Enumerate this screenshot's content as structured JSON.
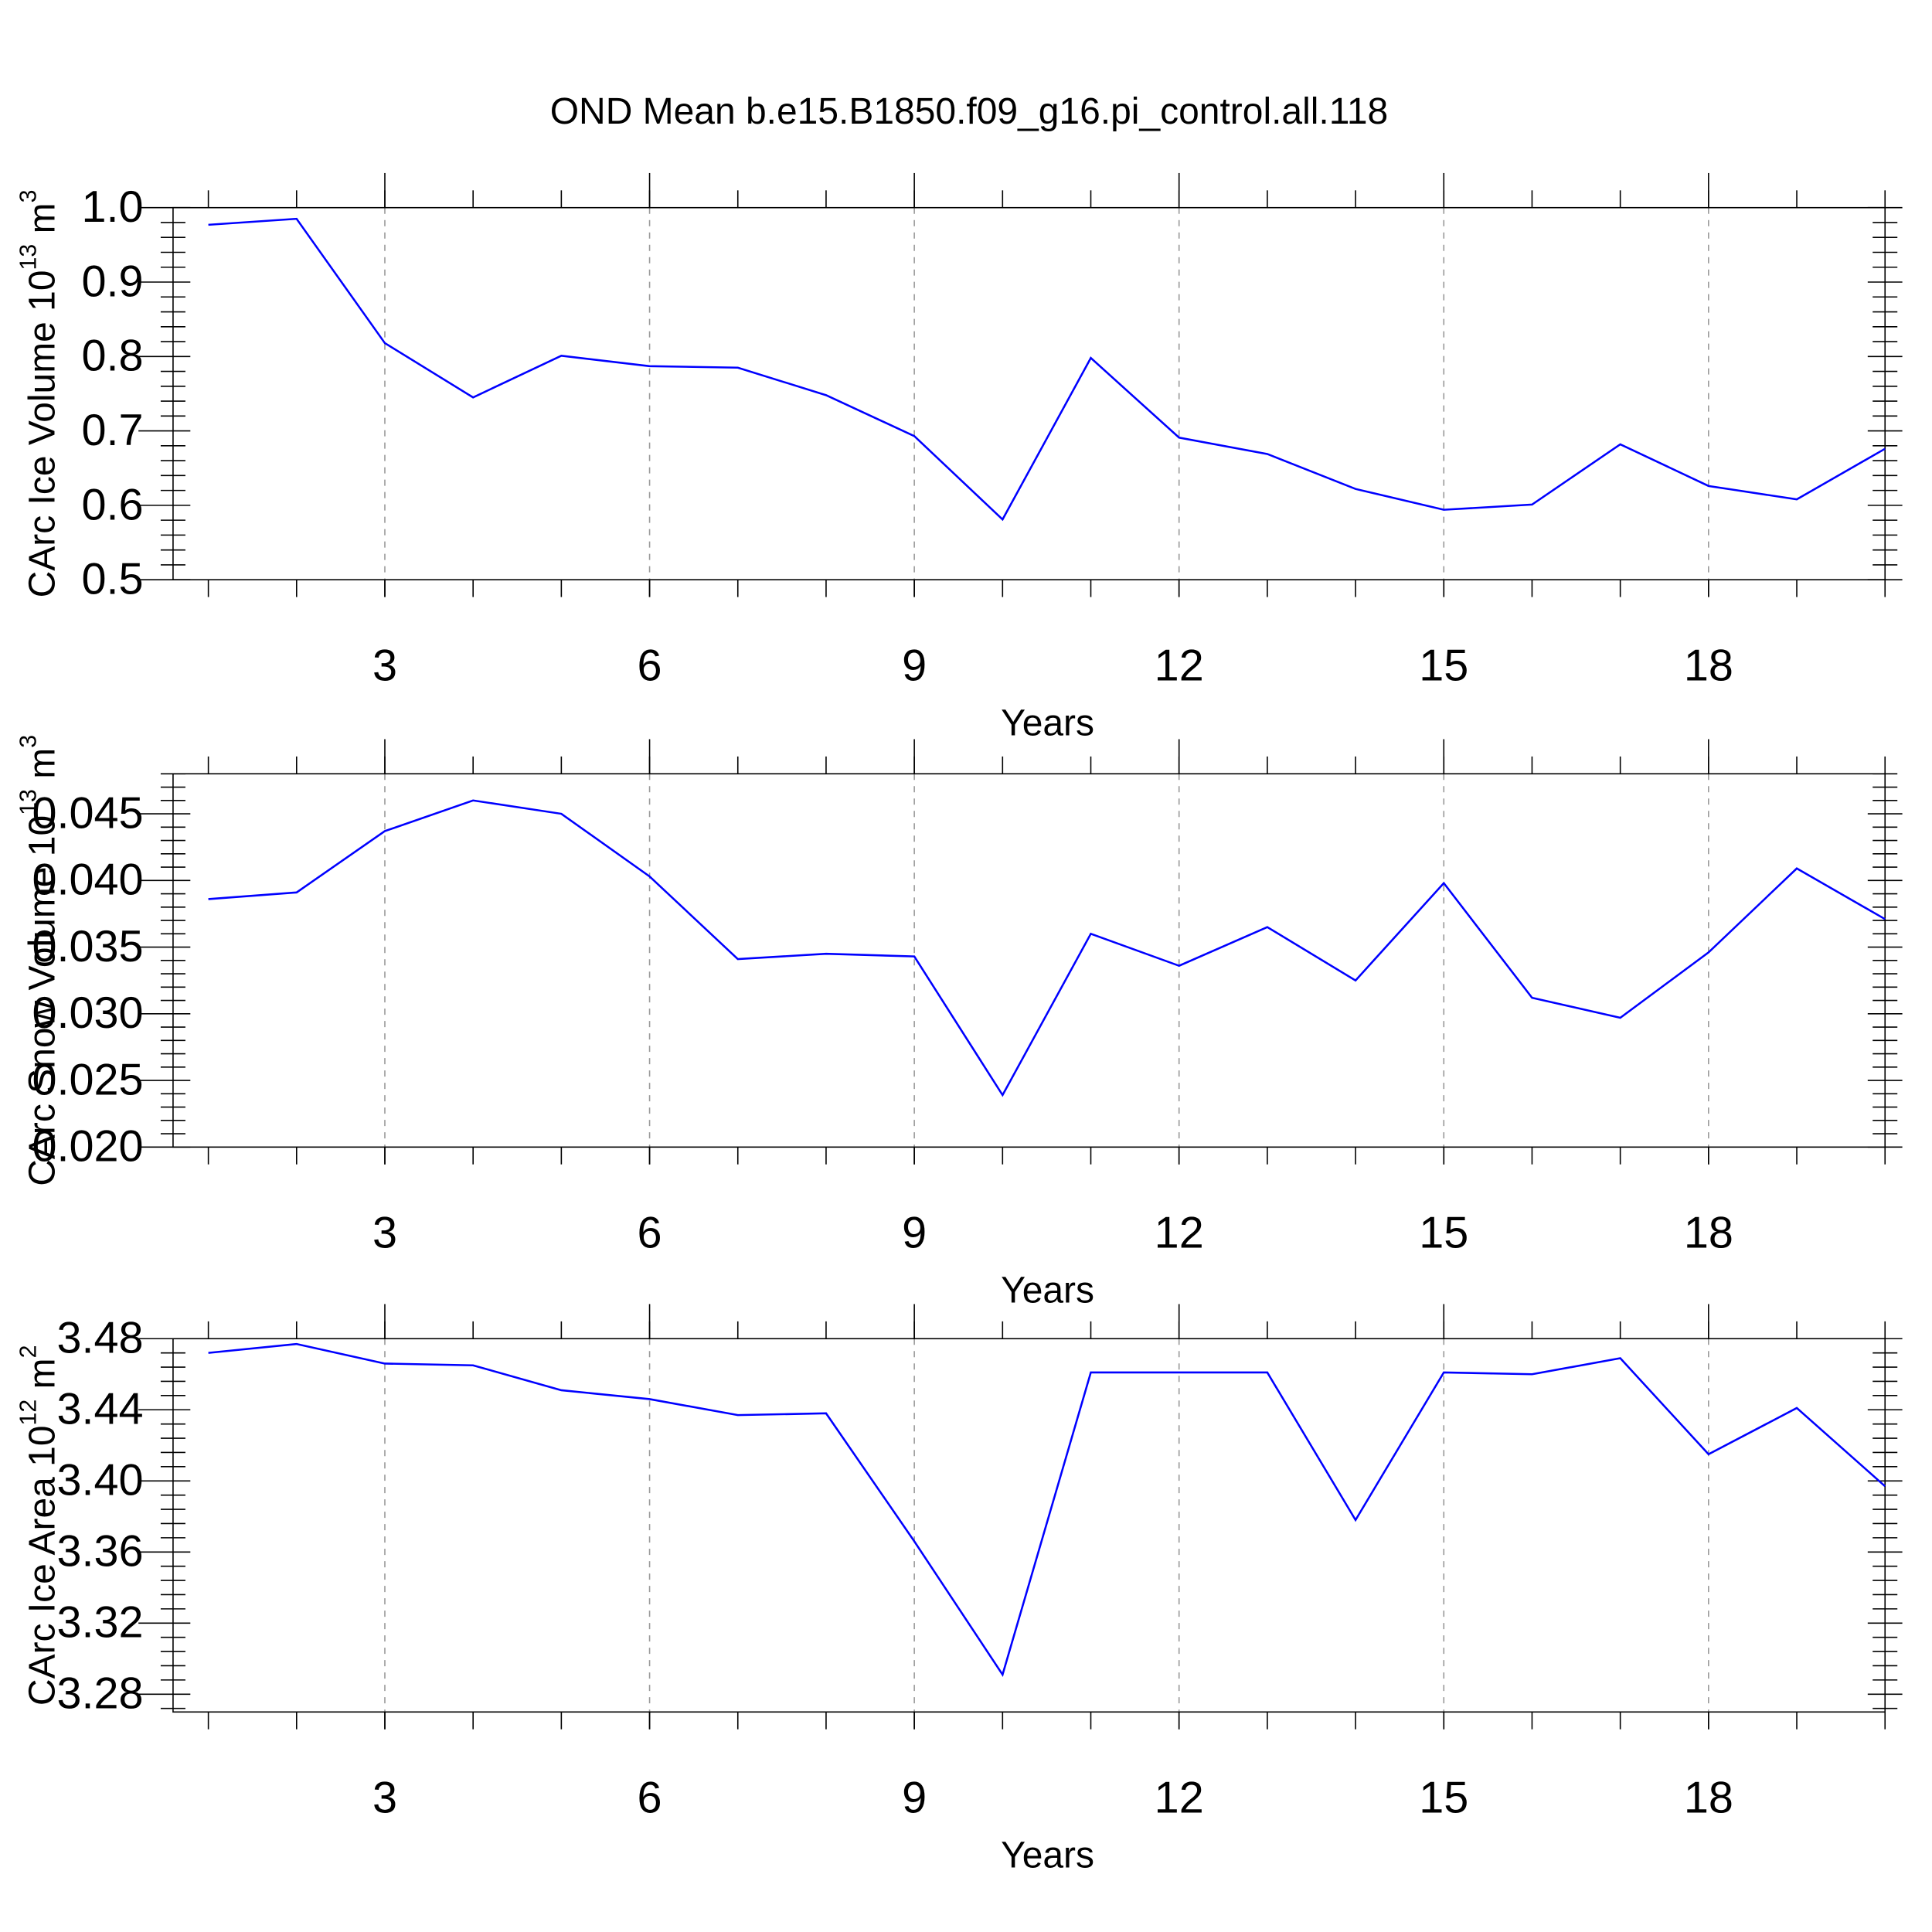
{
  "chart_data": [
    {
      "type": "line",
      "title": "OND Mean b.e15.B1850.f09_g16.pi_control.all.118",
      "xlabel": "Years",
      "ylabel": {
        "text": "CArc Ice Volume 10",
        "exp": "13",
        "unit": " m",
        "unit_exp": "3"
      },
      "x": [
        1,
        2,
        3,
        4,
        5,
        6,
        7,
        8,
        9,
        10,
        11,
        12,
        13,
        14,
        15,
        16,
        17,
        18,
        19,
        20
      ],
      "series": [
        {
          "color": "#0000ff",
          "values": [
            0.977,
            0.985,
            0.818,
            0.745,
            0.801,
            0.787,
            0.785,
            0.748,
            0.693,
            0.581,
            0.798,
            0.691,
            0.669,
            0.622,
            0.594,
            0.601,
            0.682,
            0.626,
            0.608,
            0.676
          ]
        }
      ],
      "xlim": [
        0.6,
        20
      ],
      "xticks": [
        3,
        6,
        9,
        12,
        15,
        18
      ],
      "ylim": [
        0.5,
        1.0
      ],
      "yticks": [
        {
          "value": 0.5,
          "label": "0.5"
        },
        0.6,
        0.7,
        0.8,
        0.9,
        {
          "value": 1.0,
          "label": "1.0"
        }
      ],
      "grid": "x-dashed"
    },
    {
      "type": "line",
      "xlabel": "Years",
      "ylabel": {
        "text": "CArc Snow Volume 10",
        "exp": "13",
        "unit": " m",
        "unit_exp": "3"
      },
      "x": [
        1,
        2,
        3,
        4,
        5,
        6,
        7,
        8,
        9,
        10,
        11,
        12,
        13,
        14,
        15,
        16,
        17,
        18,
        19,
        20
      ],
      "series": [
        {
          "color": "#0000ff",
          "values": [
            0.0386,
            0.0391,
            0.0437,
            0.046,
            0.045,
            0.0403,
            0.0341,
            0.0345,
            0.0343,
            0.0239,
            0.036,
            0.0336,
            0.0365,
            0.0325,
            0.0398,
            0.0312,
            0.0297,
            0.0346,
            0.0409,
            0.0371
          ]
        }
      ],
      "xlim": [
        0.6,
        20
      ],
      "xticks": [
        3,
        6,
        9,
        12,
        15,
        18
      ],
      "ylim": [
        0.02,
        0.048
      ],
      "yticks": [
        {
          "value": 0.02,
          "label": "0.020"
        },
        0.025,
        {
          "value": 0.03,
          "label": "0.030"
        },
        0.035,
        {
          "value": 0.04,
          "label": "0.040"
        },
        0.045
      ],
      "grid": "x-dashed"
    },
    {
      "type": "line",
      "xlabel": "Years",
      "ylabel": {
        "text": "CArc Ice Area 10",
        "exp": "12",
        "unit": " m",
        "unit_exp": "2"
      },
      "x": [
        1,
        2,
        3,
        4,
        5,
        6,
        7,
        8,
        9,
        10,
        11,
        12,
        13,
        14,
        15,
        16,
        17,
        18,
        19,
        20
      ],
      "series": [
        {
          "color": "#0000ff",
          "values": [
            3.472,
            3.477,
            3.466,
            3.465,
            3.451,
            3.446,
            3.437,
            3.438,
            3.366,
            3.291,
            3.461,
            3.461,
            3.461,
            3.378,
            3.461,
            3.46,
            3.469,
            3.415,
            3.441,
            3.397
          ]
        }
      ],
      "xlim": [
        0.6,
        20
      ],
      "xticks": [
        3,
        6,
        9,
        12,
        15,
        18
      ],
      "ylim": [
        3.27,
        3.48
      ],
      "yticks": [
        3.28,
        3.32,
        3.36,
        {
          "value": 3.4,
          "label": "3.40"
        },
        3.44,
        3.48
      ],
      "grid": "x-dashed"
    }
  ]
}
